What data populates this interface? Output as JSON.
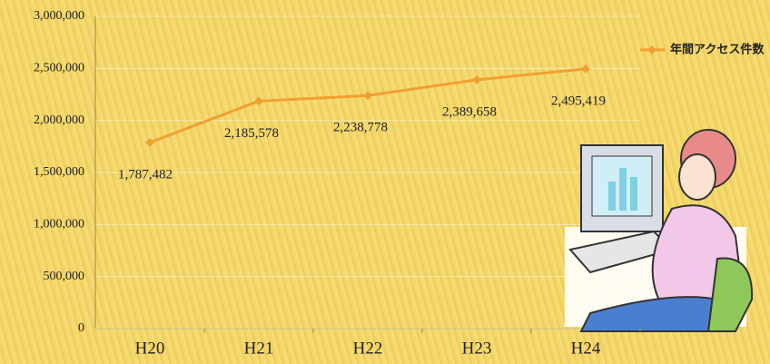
{
  "chart_data": {
    "type": "line",
    "categories": [
      "H20",
      "H21",
      "H22",
      "H23",
      "H24"
    ],
    "series": [
      {
        "name": "年間アクセス件数",
        "color": "#f0a030",
        "values": [
          1787482,
          2185578,
          2238778,
          2389658,
          2495419
        ],
        "value_labels": [
          "1,787,482",
          "2,185,578",
          "2,238,778",
          "2,389,658",
          "2,495,419"
        ]
      }
    ],
    "ylim": [
      0,
      3000000
    ],
    "yticks": [
      {
        "value": 0,
        "label": "0"
      },
      {
        "value": 500000,
        "label": "500,000"
      },
      {
        "value": 1000000,
        "label": "1,000,000"
      },
      {
        "value": 1500000,
        "label": "1,500,000"
      },
      {
        "value": 2000000,
        "label": "2,000,000"
      },
      {
        "value": 2500000,
        "label": "2,500,000"
      },
      {
        "value": 3000000,
        "label": "3,000,000"
      }
    ],
    "grid": true,
    "legend": "right"
  }
}
